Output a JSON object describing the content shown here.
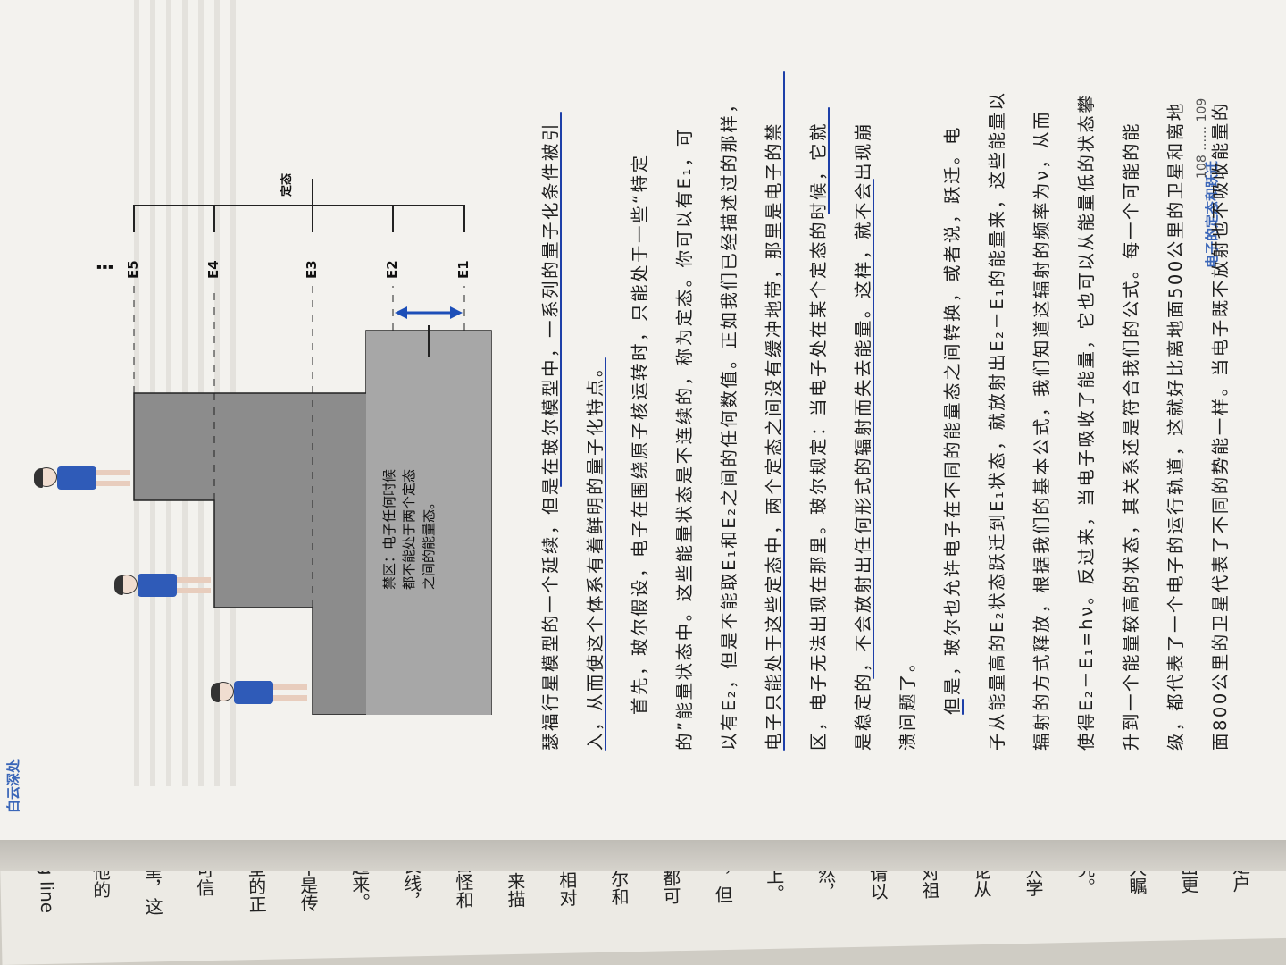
{
  "book": {
    "running_head": "白云深处",
    "section_title": "电子的定态和跃迁",
    "page_numbers": "108 …… 109"
  },
  "figure": {
    "levels": [
      "E5",
      "E4",
      "E3",
      "E2",
      "E1"
    ],
    "state_label": "定态",
    "forbidden_zone": [
      "禁区：电子任何时候",
      "都不能处于两个定态",
      "之间的能量态。"
    ],
    "dots": "⋮"
  },
  "paragraphs": [
    "瑟福行星模型的一个延续，但是在玻尔模型中，一系列的量子化条件被引",
    "入，从而使这个体系有着鲜明的量子化特点。",
    "首先，玻尔假设，电子在围绕原子核运转时，只能处于一些“特定",
    "的”能量状态中。这些能量状态是不连续的，称为定态。你可以有E₁，可",
    "以有E₂，但是不能取E₁和E₂之间的任何数值。正如我们已经描述过的那样，",
    "电子只能处于这些定态中，两个定态之间没有缓冲地带，那里是电子的禁",
    "区，电子无法出现在那里。玻尔规定：当电子处在某个定态的时候，它就",
    "是稳定的，不会放射出任何形式的辐射而失去能量。这样，就不会出现崩",
    "溃问题了。",
    "但是，玻尔也允许电子在不同的能量态之间转换，或者说，跃迁。电",
    "子从能量高的E₂状态跃迁到E₁状态，就放射出E₂－E₁的能量来，这些能量以",
    "辐射的方式释放，根据我们的基本公式，我们知道这辐射的频率为ν，从而",
    "使得E₂－E₁=hν。反过来，当电子吸收了能量，它也可以从能量低的状态攀",
    "升到一个能量较高的状态，其关系还是符合我们的公式。每一个可能的能",
    "级，都代表了一个电子的运行轨道，这就好比离地面500公里的卫星和离地",
    "面800公里的卫星代表了不同的势能一样。当电子既不放射也不吸收能量的"
  ],
  "previous_page_fragments": [
    "g line",
    "他的",
    "呈，这",
    "可信",
    "型的正",
    "不是传",
    "起来。",
    "艮线，",
    "古怪和",
    "，来描",
    "坦相对",
    "玻尔和",
    "，都可",
    "发，但",
    "桌上。",
    "当然，",
    "邀请以",
    "于对祖",
    "无论从",
    "根大学",
    "研究。",
    "令人瞩",
    "射出更",
    "上是户"
  ]
}
